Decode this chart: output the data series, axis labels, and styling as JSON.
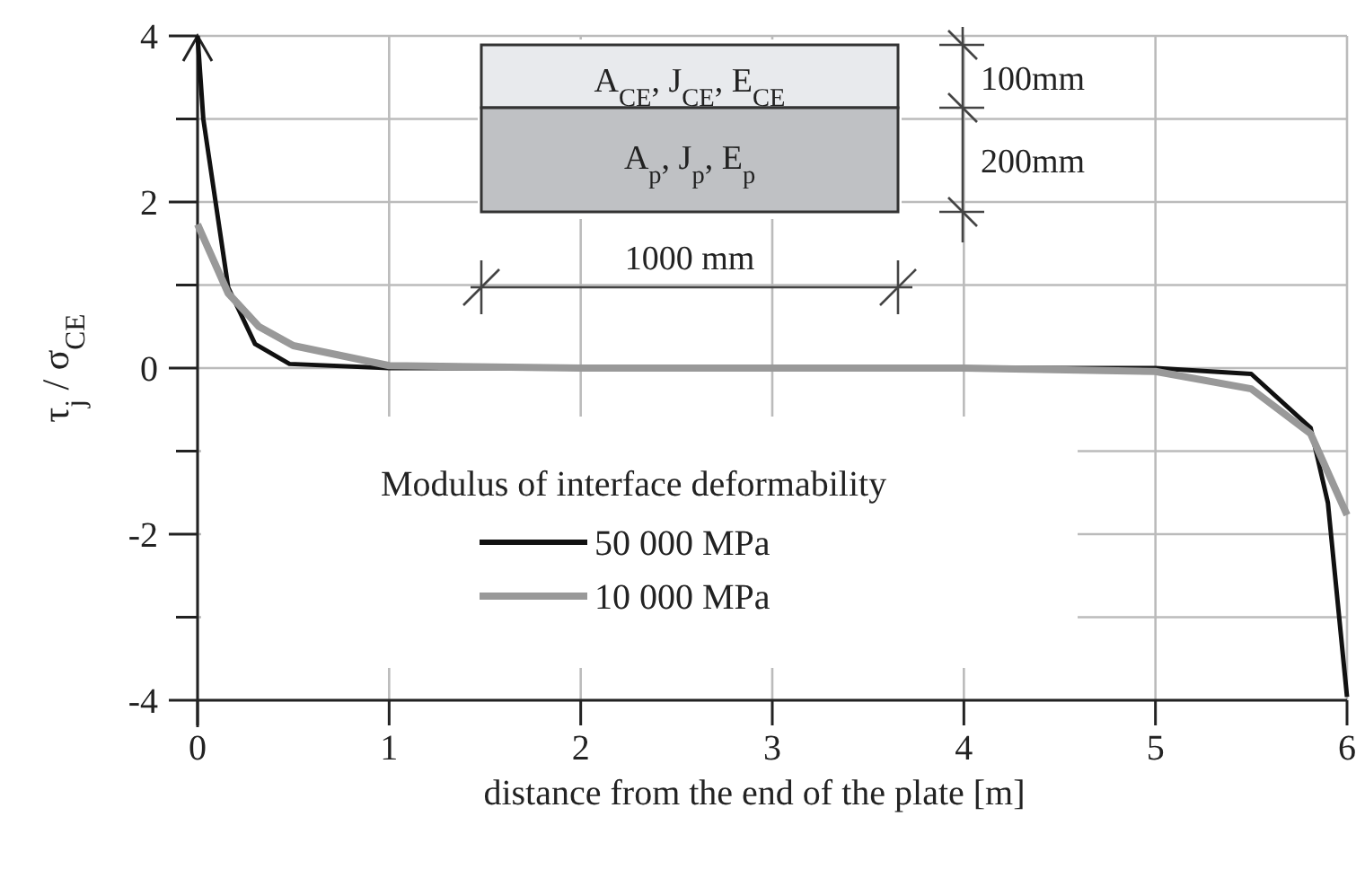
{
  "chart_data": {
    "type": "line",
    "xlabel": "distance from the end of the plate [m]",
    "ylabel": "τ$_{j}$ / σ$_{CE}$",
    "legend_title": "Modulus of interface deformability",
    "xlim": [
      0,
      6
    ],
    "xticks": [
      0,
      1,
      2,
      3,
      4,
      5,
      6
    ],
    "ylim": [
      -4,
      4
    ],
    "yticks": [
      -4,
      {
        "value": -3,
        "label": null
      },
      -2,
      {
        "value": -1,
        "label": null
      },
      0,
      {
        "value": 1,
        "label": null
      },
      2,
      {
        "value": 3,
        "label": null
      },
      4
    ],
    "grid": true,
    "legend": "bottom left",
    "marker": "none",
    "line_style": "solid",
    "annotations": [
      "A$_{CE}$, J$_{CE}$, E$_{CE}$",
      "A$_{p}$, J$_{p}$, E$_{p}$",
      "100mm",
      "200mm",
      "1000 mm"
    ],
    "series": [
      {
        "name": "50 000 MPa",
        "color": "#111111",
        "x": [
          0,
          0.03,
          0.16,
          0.3,
          0.48,
          1,
          2,
          3,
          4,
          5,
          5.5,
          5.81,
          5.9,
          6
        ],
        "values": [
          4,
          3.0,
          0.97,
          0.29,
          0.05,
          0,
          0,
          0,
          0,
          0,
          -0.07,
          -0.72,
          -1.62,
          -3.96
        ]
      },
      {
        "name": "10 000 MPa",
        "color": "#999999",
        "x": [
          0,
          0.16,
          0.32,
          0.5,
          1,
          2,
          3,
          4,
          5,
          5.5,
          5.81,
          6
        ],
        "values": [
          1.73,
          0.9,
          0.5,
          0.27,
          0.03,
          0,
          0,
          0,
          -0.04,
          -0.25,
          -0.79,
          -1.77
        ]
      }
    ]
  }
}
